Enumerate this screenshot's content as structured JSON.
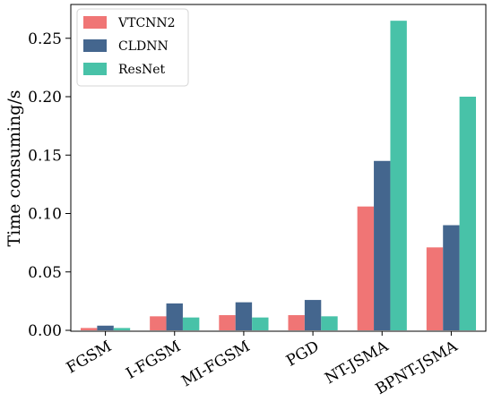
{
  "chart_data": {
    "type": "bar",
    "categories": [
      "FGSM",
      "I-FGSM",
      "MI-FGSM",
      "PGD",
      "NT-JSMA",
      "BPNT-JSMA"
    ],
    "series": [
      {
        "name": "VTCNN2",
        "color": "#F07575",
        "values": [
          0.002,
          0.012,
          0.013,
          0.013,
          0.106,
          0.071
        ]
      },
      {
        "name": "CLDNN",
        "color": "#44668E",
        "values": [
          0.004,
          0.023,
          0.024,
          0.026,
          0.145,
          0.09
        ]
      },
      {
        "name": "ResNet",
        "color": "#48C2A8",
        "values": [
          0.002,
          0.011,
          0.011,
          0.012,
          0.265,
          0.2
        ]
      }
    ],
    "title": "",
    "xlabel": "",
    "ylabel": "Time consuming/s",
    "ylim": [
      0,
      0.27
    ],
    "yticks": [
      0.0,
      0.05,
      0.1,
      0.15,
      0.2,
      0.25
    ],
    "ytick_labels": [
      "0.00",
      "0.05",
      "0.10",
      "0.15",
      "0.20",
      "0.25"
    ],
    "grid": false,
    "legend_position": "top-left"
  }
}
